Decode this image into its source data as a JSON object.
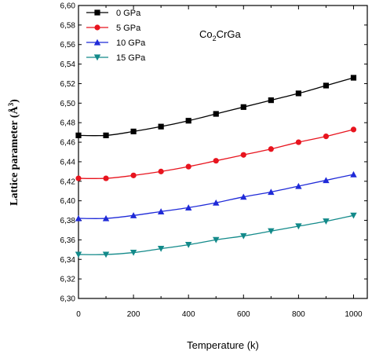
{
  "chart_data": {
    "type": "line",
    "xlabel": "Temperature (k)",
    "ylabel_main": "Lattice parameter (Å",
    "ylabel_sup": "3",
    "ylabel_end": ")",
    "annotation": {
      "main": "Co",
      "sub": "2",
      "rest": "CrGa"
    },
    "xlim": [
      0,
      1050
    ],
    "ylim": [
      6.3,
      6.6
    ],
    "xticks": [
      0,
      200,
      400,
      600,
      800,
      1000
    ],
    "yticks": [
      "6,30",
      "6,32",
      "6,34",
      "6,36",
      "6,38",
      "6,40",
      "6,42",
      "6,44",
      "6,46",
      "6,48",
      "6,50",
      "6,52",
      "6,54",
      "6,56",
      "6,58",
      "6,60"
    ],
    "x": [
      0,
      100,
      200,
      300,
      400,
      500,
      600,
      700,
      800,
      900,
      1000
    ],
    "series": [
      {
        "name": "0 GPa",
        "color": "#000000",
        "marker": "square",
        "values": [
          6.467,
          6.467,
          6.471,
          6.476,
          6.482,
          6.489,
          6.496,
          6.503,
          6.51,
          6.518,
          6.526
        ]
      },
      {
        "name": "5 GPa",
        "color": "#e8141e",
        "marker": "circle",
        "values": [
          6.423,
          6.423,
          6.426,
          6.43,
          6.435,
          6.441,
          6.447,
          6.453,
          6.46,
          6.466,
          6.473
        ]
      },
      {
        "name": "10 GPa",
        "color": "#1f2ad8",
        "marker": "triangle-up",
        "values": [
          6.382,
          6.382,
          6.385,
          6.389,
          6.393,
          6.398,
          6.404,
          6.409,
          6.415,
          6.421,
          6.427
        ]
      },
      {
        "name": "15 GPa",
        "color": "#138a8a",
        "marker": "triangle-down",
        "values": [
          6.345,
          6.345,
          6.347,
          6.351,
          6.355,
          6.36,
          6.364,
          6.369,
          6.374,
          6.379,
          6.385
        ]
      }
    ],
    "legend_position": "top-left",
    "grid": false
  }
}
